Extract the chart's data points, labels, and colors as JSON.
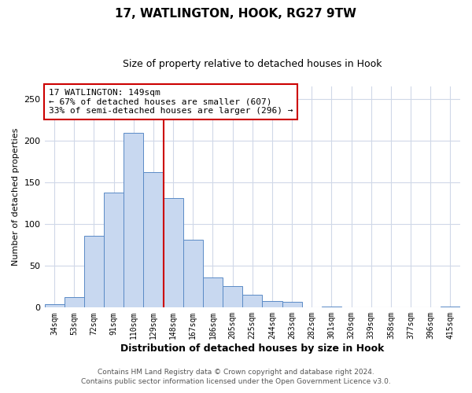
{
  "title": "17, WATLINGTON, HOOK, RG27 9TW",
  "subtitle": "Size of property relative to detached houses in Hook",
  "xlabel": "Distribution of detached houses by size in Hook",
  "ylabel": "Number of detached properties",
  "categories": [
    "34sqm",
    "53sqm",
    "72sqm",
    "91sqm",
    "110sqm",
    "129sqm",
    "148sqm",
    "167sqm",
    "186sqm",
    "205sqm",
    "225sqm",
    "244sqm",
    "263sqm",
    "282sqm",
    "301sqm",
    "320sqm",
    "339sqm",
    "358sqm",
    "377sqm",
    "396sqm",
    "415sqm"
  ],
  "values": [
    4,
    13,
    86,
    138,
    209,
    162,
    131,
    81,
    36,
    26,
    15,
    8,
    7,
    0,
    1,
    0,
    0,
    0,
    0,
    0,
    1
  ],
  "bar_color": "#c8d8f0",
  "bar_edge_color": "#5a8ac6",
  "property_line_color": "#cc0000",
  "annotation_text": "17 WATLINGTON: 149sqm\n← 67% of detached houses are smaller (607)\n33% of semi-detached houses are larger (296) →",
  "annotation_box_color": "#ffffff",
  "annotation_box_edge_color": "#cc0000",
  "ylim": [
    0,
    265
  ],
  "footer_line1": "Contains HM Land Registry data © Crown copyright and database right 2024.",
  "footer_line2": "Contains public sector information licensed under the Open Government Licence v3.0.",
  "bg_color": "#ffffff",
  "grid_color": "#d0d8e8",
  "footer_color": "#555555"
}
